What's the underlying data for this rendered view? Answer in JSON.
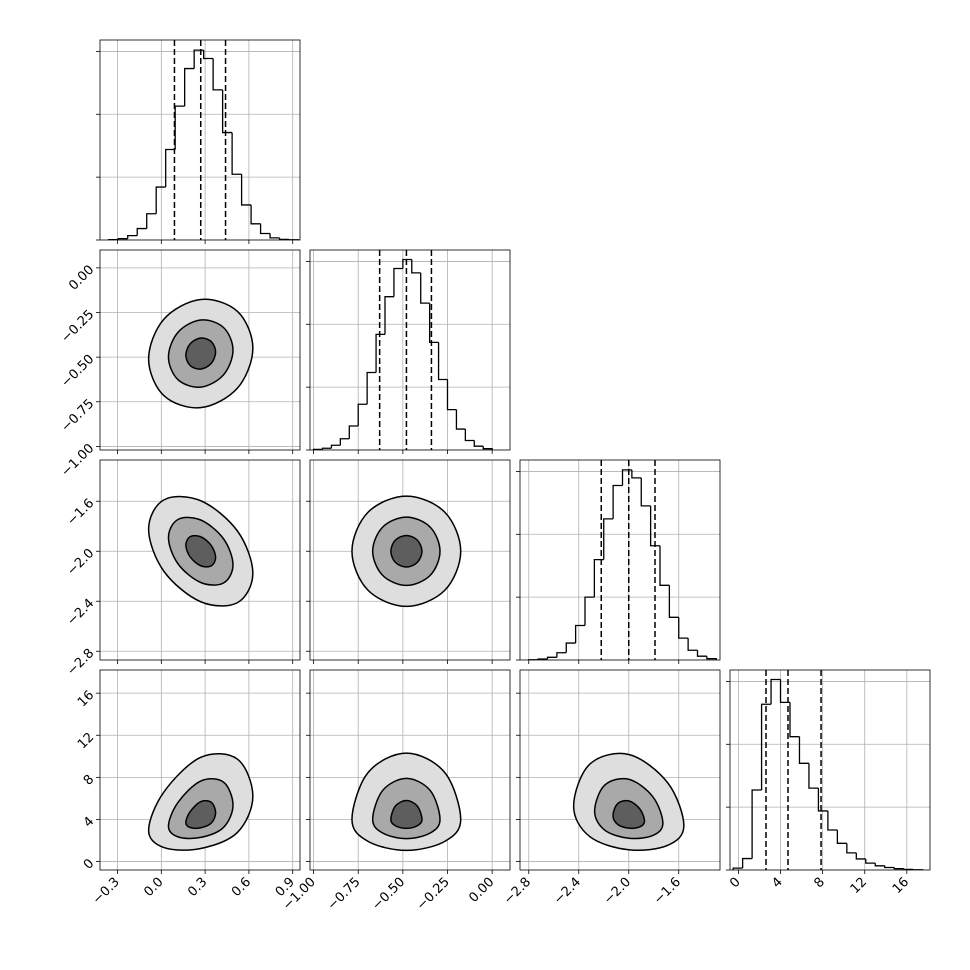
{
  "chart_data": {
    "type": "corner",
    "grid": true,
    "line_color": "#000000",
    "grid_color": "#b0b0b0",
    "contour_fills": [
      "#5e5e5e",
      "#a9a9a9",
      "#dedede"
    ],
    "quantile_style": "dashed",
    "hist_ytick_labels": false,
    "params": [
      {
        "xlim": [
          -0.42,
          0.95
        ],
        "xticks": [
          {
            "value": -0.3,
            "label": "−0.3"
          },
          {
            "value": 0,
            "label": "0.0"
          },
          0.3,
          0.6,
          0.9
        ],
        "quantiles": [
          0.09,
          0.27,
          0.44
        ],
        "hist": {
          "bins": [
            -0.36,
            -0.295,
            -0.23,
            -0.165,
            -0.1,
            -0.035,
            0.03,
            0.095,
            0.16,
            0.225,
            0.29,
            0.355,
            0.42,
            0.485,
            0.55,
            0.615,
            0.68,
            0.745,
            0.81,
            0.875,
            0.94
          ],
          "counts": [
            2,
            7,
            23,
            60,
            138,
            278,
            475,
            703,
            900,
            997,
            953,
            788,
            564,
            345,
            184,
            85,
            34,
            11,
            3,
            1
          ],
          "ylim": [
            0,
            1050
          ],
          "yticks": [
            0,
            330,
            660,
            990
          ]
        }
      },
      {
        "xlim": [
          -1.02,
          0.1
        ],
        "xticks": [
          {
            "value": -1,
            "label": "−1.00"
          },
          {
            "value": -0.75,
            "label": "−0.75"
          },
          {
            "value": -0.5,
            "label": "−0.50"
          },
          {
            "value": -0.25,
            "label": "−0.25"
          },
          {
            "value": 0,
            "label": "0.00"
          }
        ],
        "quantiles": [
          -0.63,
          -0.48,
          -0.34
        ],
        "hist": {
          "bins": [
            -1,
            -0.95,
            -0.9,
            -0.85,
            -0.8,
            -0.75,
            -0.7,
            -0.65,
            -0.6,
            -0.55,
            -0.5,
            -0.45,
            -0.4,
            -0.35,
            -0.3,
            -0.25,
            -0.2,
            -0.15,
            -0.1,
            -0.05,
            0
          ],
          "counts": [
            3,
            9,
            25,
            59,
            126,
            240,
            407,
            607,
            805,
            953,
            1000,
            930,
            771,
            565,
            370,
            212,
            110,
            50,
            20,
            7
          ],
          "ylim": [
            0,
            1050
          ],
          "yticks": [
            0,
            330,
            660,
            990
          ]
        }
      },
      {
        "xlim": [
          -2.87,
          -1.27
        ],
        "xticks": [
          {
            "value": -2.8,
            "label": "−2.8"
          },
          {
            "value": -2.4,
            "label": "−2.4"
          },
          {
            "value": -2,
            "label": "−2.0"
          },
          {
            "value": -1.6,
            "label": "−1.6"
          }
        ],
        "quantiles": [
          -2.22,
          -2.0,
          -1.79
        ],
        "hist": {
          "bins": [
            -2.8,
            -2.725,
            -2.65,
            -2.575,
            -2.5,
            -2.425,
            -2.35,
            -2.275,
            -2.2,
            -2.125,
            -2.05,
            -1.975,
            -1.9,
            -1.825,
            -1.75,
            -1.675,
            -1.6,
            -1.525,
            -1.45,
            -1.375,
            -1.3
          ],
          "counts": [
            1,
            5,
            14,
            38,
            89,
            181,
            330,
            527,
            741,
            916,
            998,
            956,
            809,
            600,
            392,
            224,
            115,
            51,
            20,
            7
          ],
          "ylim": [
            0,
            1050
          ],
          "yticks": [
            0,
            330,
            660,
            990
          ]
        }
      },
      {
        "xlim": [
          -0.8,
          18.2
        ],
        "xticks": [
          0,
          4,
          8,
          12,
          16
        ],
        "quantiles": [
          2.62,
          4.71,
          7.85
        ],
        "hist": {
          "bins": [
            -0.5,
            0.4,
            1.3,
            2.2,
            3.1,
            4.0,
            4.9,
            5.8,
            6.7,
            7.6,
            8.5,
            9.4,
            10.3,
            11.2,
            12.1,
            13.0,
            13.9,
            14.8,
            15.7,
            16.6,
            17.5
          ],
          "counts": [
            10,
            60,
            420,
            870,
            1000,
            880,
            700,
            560,
            430,
            310,
            210,
            140,
            90,
            58,
            36,
            22,
            13,
            7,
            3,
            1
          ],
          "ylim": [
            0,
            1050
          ],
          "yticks": [
            0,
            330,
            660,
            990
          ]
        }
      }
    ],
    "pairs": [
      {
        "x": 0,
        "y": 1,
        "contours": [
          {
            "x": [
              0.372,
              0.342,
              0.27,
              0.198,
              0.168,
              0.198,
              0.27,
              0.342
            ],
            "y": [
              -0.471,
              -0.413,
              -0.393,
              -0.425,
              -0.489,
              -0.547,
              -0.567,
              -0.535
            ]
          },
          {
            "x": [
              0.491,
              0.426,
              0.27,
              0.114,
              0.049,
              0.114,
              0.27,
              0.426
            ],
            "y": [
              -0.461,
              -0.334,
              -0.292,
              -0.361,
              -0.499,
              -0.626,
              -0.668,
              -0.599
            ]
          },
          {
            "x": [
              0.627,
              0.522,
              0.27,
              0.018,
              -0.087,
              0.018,
              0.27,
              0.522
            ],
            "y": [
              -0.45,
              -0.244,
              -0.177,
              -0.287,
              -0.51,
              -0.716,
              -0.783,
              -0.673
            ]
          }
        ]
      },
      {
        "x": 0,
        "y": 2,
        "contours": [
          {
            "x": [
              0.372,
              0.342,
              0.27,
              0.198,
              0.168,
              0.198,
              0.27,
              0.342
            ],
            "y": [
              -2.05,
              -1.954,
              -1.884,
              -1.883,
              -1.95,
              -2.046,
              -2.116,
              -2.117
            ]
          },
          {
            "x": [
              0.491,
              0.426,
              0.27,
              0.114,
              0.049,
              0.114,
              0.27,
              0.426
            ],
            "y": [
              -2.109,
              -1.9,
              -1.75,
              -1.746,
              -1.891,
              -2.1,
              -2.25,
              -2.254
            ]
          },
          {
            "x": [
              0.627,
              0.522,
              0.27,
              0.018,
              -0.087,
              0.018,
              0.27,
              0.522
            ],
            "y": [
              -2.176,
              -1.839,
              -1.596,
              -1.589,
              -1.824,
              -2.161,
              -2.404,
              -2.411
            ]
          }
        ]
      },
      {
        "x": 1,
        "y": 2,
        "contours": [
          {
            "x": [
              -0.393,
              -0.419,
              -0.48,
              -0.542,
              -0.567,
              -0.542,
              -0.48,
              -0.419
            ],
            "y": [
              -2.0,
              -1.911,
              -1.874,
              -1.911,
              -2.0,
              -2.089,
              -2.126,
              -2.089
            ]
          },
          {
            "x": [
              -0.292,
              -0.347,
              -0.48,
              -0.613,
              -0.669,
              -0.613,
              -0.48,
              -0.347
            ],
            "y": [
              -2.0,
              -1.807,
              -1.727,
              -1.807,
              -2.0,
              -2.193,
              -2.273,
              -2.193
            ]
          },
          {
            "x": [
              -0.176,
              -0.265,
              -0.48,
              -0.695,
              -0.785,
              -0.695,
              -0.48,
              -0.265
            ],
            "y": [
              -2.0,
              -1.688,
              -1.559,
              -1.688,
              -2.0,
              -2.312,
              -2.441,
              -2.312
            ]
          }
        ]
      },
      {
        "x": 0,
        "y": 3,
        "contours": [
          {
            "x": [
              0.372,
              0.342,
              0.27,
              0.198,
              0.168,
              0.198,
              0.27,
              0.342
            ],
            "y": [
              4.63,
              5.636,
              5.687,
              4.747,
              3.706,
              3.236,
              3.213,
              3.651
            ]
          },
          {
            "x": [
              0.491,
              0.426,
              0.27,
              0.114,
              0.049,
              0.114,
              0.27,
              0.426
            ],
            "y": [
              5.365,
              7.545,
              7.654,
              5.619,
              3.363,
              2.346,
              2.295,
              3.245
            ]
          },
          {
            "x": [
              0.627,
              0.522,
              0.27,
              0.018,
              -0.087,
              0.018,
              0.27,
              0.522
            ],
            "y": [
              6.205,
              9.727,
              9.903,
              6.615,
              2.971,
              1.328,
              1.245,
              2.78
            ]
          }
        ]
      },
      {
        "x": 1,
        "y": 3,
        "contours": [
          {
            "x": [
              -0.393,
              -0.419,
              -0.48,
              -0.542,
              -0.567,
              -0.542,
              -0.48,
              -0.419
            ],
            "y": [
              4.0,
              5.273,
              5.8,
              5.273,
              4.0,
              3.406,
              3.16,
              3.406
            ]
          },
          {
            "x": [
              -0.292,
              -0.347,
              -0.48,
              -0.613,
              -0.669,
              -0.613,
              -0.48,
              -0.347
            ],
            "y": [
              4.0,
              6.757,
              7.9,
              6.757,
              4.0,
              2.713,
              2.18,
              2.713
            ]
          },
          {
            "x": [
              -0.176,
              -0.265,
              -0.48,
              -0.695,
              -0.785,
              -0.695,
              -0.48,
              -0.265
            ],
            "y": [
              4.0,
              8.454,
              10.3,
              8.454,
              4.0,
              1.921,
              1.06,
              1.921
            ]
          }
        ]
      },
      {
        "x": 2,
        "y": 3,
        "contours": [
          {
            "x": [
              -1.874,
              -1.911,
              -2.0,
              -2.089,
              -2.126,
              -2.089,
              -2.0,
              -1.911
            ],
            "y": [
              3.832,
              4.994,
              5.764,
              5.501,
              4.36,
              3.536,
              3.177,
              3.299
            ]
          },
          {
            "x": [
              -1.727,
              -1.807,
              -2.0,
              -2.193,
              -2.273,
              -2.193,
              -2.0,
              -1.807
            ],
            "y": [
              3.636,
              6.153,
              7.822,
              7.253,
              4.78,
              2.995,
              2.216,
              2.482
            ]
          },
          {
            "x": [
              -1.559,
              -1.688,
              -2.0,
              -2.312,
              -2.441,
              -2.312,
              -2.0,
              -1.688
            ],
            "y": [
              3.412,
              7.478,
              10.174,
              9.254,
              5.26,
              2.377,
              1.119,
              1.548
            ]
          }
        ]
      }
    ]
  }
}
